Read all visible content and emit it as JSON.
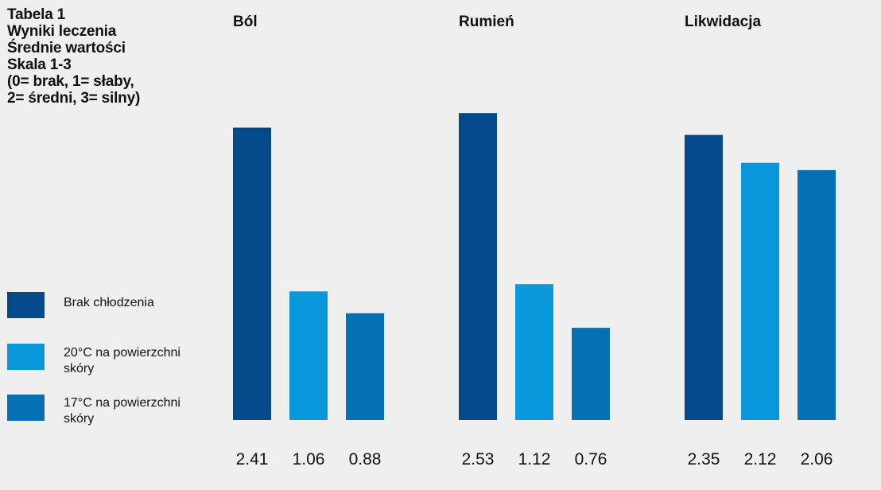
{
  "title_lines": [
    "Tabela 1",
    "Wyniki leczenia",
    "Średnie wartości",
    "Skala 1-3",
    "(0= brak, 1= słaby,",
    "2= średni, 3= silny)"
  ],
  "chart_data": {
    "type": "bar",
    "title": "Tabela 1 Wyniki leczenia Średnie wartości Skala 1-3 (0= brak, 1= słaby, 2= średni, 3= silny)",
    "categories": [
      "Ból",
      "Rumień",
      "Likwidacja"
    ],
    "series": [
      {
        "name": "Brak chłodzenia",
        "name_lines": [
          "Brak chłodzenia"
        ],
        "color": "#044a8a",
        "values": [
          2.41,
          2.53,
          2.35
        ],
        "labels": [
          "2.41",
          "2.53",
          "2.35"
        ]
      },
      {
        "name": "20°C na powierzchni skóry",
        "name_lines": [
          "20°C na powierzchni",
          "skóry"
        ],
        "color": "#0898db",
        "values": [
          1.06,
          1.12,
          2.12
        ],
        "labels": [
          "1.06",
          "1.12",
          "2.12"
        ]
      },
      {
        "name": "17°C na powierzchni skóry",
        "name_lines": [
          "17°C na powierzchni",
          "skóry"
        ],
        "color": "#0670b5",
        "values": [
          0.88,
          0.76,
          2.06
        ],
        "labels": [
          "0.88",
          "0.76",
          "2.06"
        ]
      }
    ],
    "ylim": [
      0,
      3
    ],
    "grid": false,
    "legend_position": "left",
    "xlabel": "",
    "ylabel": ""
  }
}
